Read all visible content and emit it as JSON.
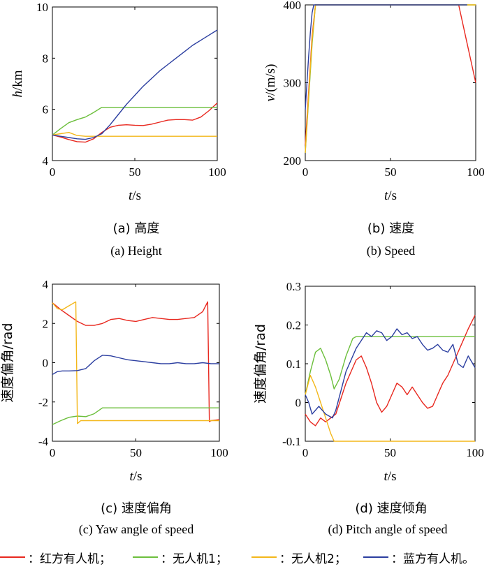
{
  "chart_data": [
    {
      "type": "line",
      "panel": "a",
      "ylabel_var": "h",
      "ylabel_unit": "/km",
      "xlabel_var": "t",
      "xlabel_unit": "/s",
      "xlim": [
        0,
        100
      ],
      "ylim": [
        4,
        10
      ],
      "xticks": [
        "0",
        "50",
        "100"
      ],
      "yticks": [
        "4",
        "6",
        "8",
        "10"
      ],
      "caption_cn": "(a) 高度",
      "caption_en": "(a) Height",
      "series": [
        {
          "color": "#e8281f",
          "x": [
            0,
            5,
            10,
            15,
            20,
            25,
            30,
            35,
            40,
            45,
            50,
            55,
            60,
            65,
            70,
            75,
            80,
            85,
            90,
            95,
            100
          ],
          "y": [
            5.0,
            4.92,
            4.82,
            4.74,
            4.72,
            4.85,
            5.1,
            5.3,
            5.38,
            5.4,
            5.38,
            5.37,
            5.42,
            5.5,
            5.58,
            5.6,
            5.6,
            5.58,
            5.7,
            5.95,
            6.25
          ]
        },
        {
          "color": "#6cbf3c",
          "x": [
            0,
            5,
            10,
            15,
            20,
            25,
            30,
            100
          ],
          "y": [
            5.0,
            5.25,
            5.48,
            5.6,
            5.7,
            5.88,
            6.08,
            6.08
          ]
        },
        {
          "color": "#f3b71a",
          "x": [
            0,
            5,
            10,
            15,
            20,
            100
          ],
          "y": [
            5.0,
            5.05,
            5.1,
            4.98,
            4.95,
            4.95
          ]
        },
        {
          "color": "#2b3ea0",
          "x": [
            0,
            5,
            10,
            15,
            20,
            25,
            30,
            35,
            40,
            45,
            50,
            55,
            60,
            65,
            70,
            75,
            80,
            85,
            90,
            95,
            100
          ],
          "y": [
            5.0,
            4.95,
            4.9,
            4.85,
            4.83,
            4.9,
            5.05,
            5.4,
            5.8,
            6.2,
            6.55,
            6.9,
            7.2,
            7.5,
            7.75,
            8.0,
            8.25,
            8.5,
            8.7,
            8.9,
            9.1
          ]
        }
      ]
    },
    {
      "type": "line",
      "panel": "b",
      "ylabel_var": "v",
      "ylabel_unit": "/(m/s)",
      "xlabel_var": "t",
      "xlabel_unit": "/s",
      "xlim": [
        0,
        100
      ],
      "ylim": [
        200,
        400
      ],
      "xticks": [
        "0",
        "50",
        "100"
      ],
      "yticks": [
        "200",
        "300",
        "400"
      ],
      "caption_cn": "(b) 速度",
      "caption_en": "(b) Speed",
      "series": [
        {
          "color": "#e8281f",
          "x": [
            0,
            2,
            4,
            6,
            90,
            95,
            100
          ],
          "y": [
            220,
            290,
            360,
            400,
            400,
            350,
            300
          ]
        },
        {
          "color": "#6cbf3c",
          "x": [
            0,
            2,
            4,
            6,
            100
          ],
          "y": [
            210,
            280,
            350,
            400,
            400
          ]
        },
        {
          "color": "#f3b71a",
          "x": [
            0,
            2,
            4,
            6,
            100
          ],
          "y": [
            210,
            285,
            355,
            400,
            400
          ]
        },
        {
          "color": "#2b3ea0",
          "x": [
            0,
            1,
            2,
            3,
            4,
            5,
            95
          ],
          "y": [
            265,
            300,
            335,
            365,
            390,
            400,
            400
          ]
        }
      ]
    },
    {
      "type": "line",
      "panel": "c",
      "ylabel_text": "速度偏角/rad",
      "xlabel_var": "t",
      "xlabel_unit": "/s",
      "xlim": [
        0,
        100
      ],
      "ylim": [
        -4,
        4
      ],
      "xticks": [
        "0",
        "50",
        "100"
      ],
      "yticks": [
        "-4",
        "-2",
        "0",
        "2",
        "4"
      ],
      "caption_cn": "(c) 速度偏角",
      "caption_en": "(c) Yaw angle of speed",
      "series": [
        {
          "color": "#e8281f",
          "x": [
            0,
            5,
            10,
            15,
            20,
            25,
            30,
            35,
            40,
            45,
            50,
            55,
            60,
            65,
            70,
            75,
            80,
            85,
            90,
            93,
            94,
            95,
            100
          ],
          "y": [
            3.05,
            2.7,
            2.4,
            2.1,
            1.9,
            1.9,
            2.0,
            2.2,
            2.25,
            2.15,
            2.1,
            2.2,
            2.3,
            2.25,
            2.2,
            2.2,
            2.25,
            2.3,
            2.6,
            3.1,
            -3.0,
            -2.95,
            -2.9
          ]
        },
        {
          "color": "#6cbf3c",
          "x": [
            0,
            5,
            10,
            15,
            20,
            25,
            30,
            100
          ],
          "y": [
            -3.15,
            -2.95,
            -2.78,
            -2.72,
            -2.75,
            -2.6,
            -2.3,
            -2.3
          ]
        },
        {
          "color": "#f3b71a",
          "x": [
            0,
            3,
            6,
            10,
            14,
            15,
            17,
            100
          ],
          "y": [
            3.05,
            2.75,
            2.7,
            2.9,
            3.1,
            -3.1,
            -2.95,
            -2.95
          ]
        },
        {
          "color": "#2b3ea0",
          "x": [
            0,
            3,
            6,
            10,
            15,
            20,
            25,
            30,
            35,
            40,
            45,
            50,
            55,
            60,
            65,
            70,
            75,
            80,
            85,
            90,
            95,
            100
          ],
          "y": [
            -0.6,
            -0.45,
            -0.42,
            -0.42,
            -0.4,
            -0.3,
            0.1,
            0.38,
            0.35,
            0.25,
            0.15,
            0.1,
            0.05,
            0.0,
            -0.05,
            -0.05,
            0.0,
            -0.05,
            -0.05,
            0.0,
            -0.05,
            -0.05
          ]
        }
      ]
    },
    {
      "type": "line",
      "panel": "d",
      "ylabel_text": "速度偏角/rad",
      "xlabel_var": "t",
      "xlabel_unit": "/s",
      "xlim": [
        0,
        100
      ],
      "ylim": [
        -0.1,
        0.3
      ],
      "xticks": [
        "0",
        "50",
        "100"
      ],
      "yticks": [
        "-0.1",
        "0",
        "0.1",
        "0.2",
        "0.3"
      ],
      "caption_cn": "(d) 速度倾角",
      "caption_en": "(d) Pitch angle of speed",
      "series": [
        {
          "color": "#e8281f",
          "x": [
            0,
            3,
            6,
            9,
            12,
            15,
            18,
            21,
            24,
            27,
            30,
            33,
            36,
            39,
            42,
            45,
            48,
            51,
            54,
            57,
            60,
            63,
            66,
            69,
            72,
            75,
            78,
            81,
            84,
            87,
            90,
            93,
            96,
            100
          ],
          "y": [
            -0.03,
            -0.05,
            -0.06,
            -0.04,
            -0.05,
            -0.04,
            -0.03,
            0.01,
            0.05,
            0.08,
            0.11,
            0.12,
            0.09,
            0.05,
            0.0,
            -0.025,
            -0.01,
            0.02,
            0.05,
            0.04,
            0.02,
            0.04,
            0.02,
            0.0,
            -0.015,
            -0.01,
            0.02,
            0.05,
            0.07,
            0.1,
            0.13,
            0.16,
            0.19,
            0.225
          ]
        },
        {
          "color": "#6cbf3c",
          "x": [
            0,
            3,
            6,
            9,
            12,
            15,
            17,
            20,
            24,
            28,
            30,
            100
          ],
          "y": [
            0.02,
            0.08,
            0.13,
            0.14,
            0.11,
            0.07,
            0.035,
            0.06,
            0.12,
            0.165,
            0.17,
            0.17
          ]
        },
        {
          "color": "#f3b71a",
          "x": [
            0,
            3,
            6,
            9,
            12,
            15,
            17,
            100
          ],
          "y": [
            0.02,
            0.07,
            0.04,
            0.0,
            -0.04,
            -0.08,
            -0.1,
            -0.1
          ]
        },
        {
          "color": "#2b3ea0",
          "x": [
            0,
            2,
            4,
            6,
            8,
            10,
            12,
            14,
            16,
            18,
            21,
            24,
            27,
            30,
            33,
            36,
            39,
            42,
            45,
            48,
            51,
            54,
            57,
            60,
            63,
            66,
            69,
            72,
            75,
            78,
            81,
            84,
            87,
            90,
            93,
            96,
            100
          ],
          "y": [
            0.02,
            0.0,
            -0.03,
            -0.02,
            -0.01,
            -0.02,
            -0.03,
            -0.035,
            -0.04,
            -0.02,
            0.03,
            0.08,
            0.11,
            0.14,
            0.16,
            0.18,
            0.17,
            0.185,
            0.18,
            0.16,
            0.17,
            0.19,
            0.175,
            0.18,
            0.165,
            0.17,
            0.15,
            0.135,
            0.14,
            0.15,
            0.135,
            0.13,
            0.15,
            0.1,
            0.09,
            0.12,
            0.09
          ]
        }
      ]
    }
  ],
  "legend": [
    {
      "label": "：红方有人机；",
      "color": "#e8281f"
    },
    {
      "label": "：无人机1；",
      "color": "#6cbf3c"
    },
    {
      "label": "：无人机2；",
      "color": "#f3b71a"
    },
    {
      "label": "：蓝方有人机。",
      "color": "#2b3ea0"
    }
  ]
}
